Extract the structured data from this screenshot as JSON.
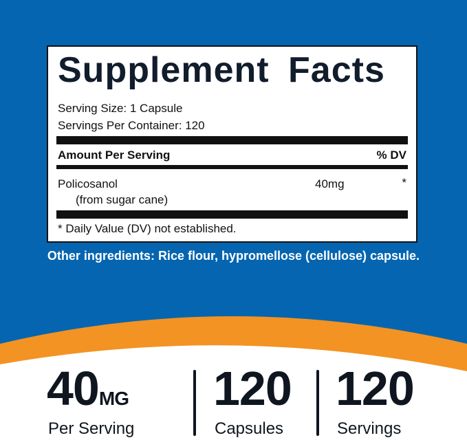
{
  "colors": {
    "background": "#0565b0",
    "accent": "#f39323",
    "text": "#0f1620"
  },
  "facts": {
    "title": "Supplement Facts",
    "serving_size": "Serving Size: 1 Capsule",
    "servings_per_container": "Servings Per Container: 120",
    "amount_header": "Amount Per Serving",
    "dv_header": "% DV",
    "ingredient": {
      "name": "Policosanol",
      "source": "(from sugar cane)",
      "amount": "40mg",
      "dv": "*"
    },
    "footnote": "* Daily Value (DV) not established."
  },
  "other_ingredients": "Other ingredients: Rice flour, hypromellose (cellulose) capsule.",
  "stats": [
    {
      "value": "40",
      "unit": "MG",
      "label": "Per Serving"
    },
    {
      "value": "120",
      "unit": "",
      "label": "Capsules"
    },
    {
      "value": "120",
      "unit": "",
      "label": "Servings"
    }
  ]
}
